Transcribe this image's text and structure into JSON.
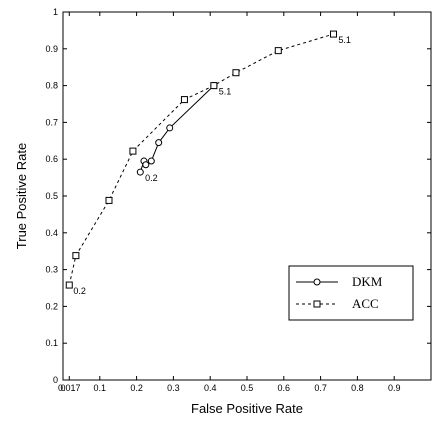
{
  "chart_data": {
    "type": "line",
    "xlabel": "False Positive Rate",
    "ylabel": "True Positive Rate",
    "xlim": [
      0,
      1
    ],
    "ylim": [
      0,
      1
    ],
    "x_tick_labels": [
      "0",
      "0.017",
      "0.1",
      "0.2",
      "0.3",
      "0.4",
      "0.5",
      "0.6",
      "0.7",
      "0.8",
      "0.9"
    ],
    "x_ticks": [
      0,
      0.017,
      0.1,
      0.2,
      0.3,
      0.4,
      0.5,
      0.6,
      0.7,
      0.8,
      0.9
    ],
    "y_tick_labels": [
      "0",
      "0.1",
      "0.2",
      "0.3",
      "0.4",
      "0.5",
      "0.6",
      "0.7",
      "0.8",
      "0.9",
      "1"
    ],
    "y_ticks": [
      0,
      0.1,
      0.2,
      0.3,
      0.4,
      0.5,
      0.6,
      0.7,
      0.8,
      0.9,
      1
    ],
    "grid": false,
    "legend_position": "bottom-right",
    "series": [
      {
        "name": "DKM",
        "line_style": "solid",
        "marker": "circle",
        "points": [
          [
            0.21,
            0.565
          ],
          [
            0.22,
            0.595
          ],
          [
            0.225,
            0.585
          ],
          [
            0.24,
            0.595
          ],
          [
            0.26,
            0.645
          ],
          [
            0.29,
            0.685
          ],
          [
            0.41,
            0.8
          ]
        ]
      },
      {
        "name": "ACC",
        "line_style": "dashed",
        "marker": "square",
        "points": [
          [
            0.017,
            0.258
          ],
          [
            0.035,
            0.338
          ],
          [
            0.125,
            0.488
          ],
          [
            0.19,
            0.622
          ],
          [
            0.33,
            0.762
          ],
          [
            0.41,
            0.8
          ],
          [
            0.47,
            0.835
          ],
          [
            0.585,
            0.895
          ],
          [
            0.735,
            0.94
          ]
        ]
      }
    ],
    "annotations": [
      {
        "text": "0.2",
        "x": 0.215,
        "y": 0.565
      },
      {
        "text": "5.1",
        "x": 0.415,
        "y": 0.8
      },
      {
        "text": "0.2",
        "x": 0.02,
        "y": 0.258
      },
      {
        "text": "5.1",
        "x": 0.74,
        "y": 0.94
      }
    ]
  }
}
